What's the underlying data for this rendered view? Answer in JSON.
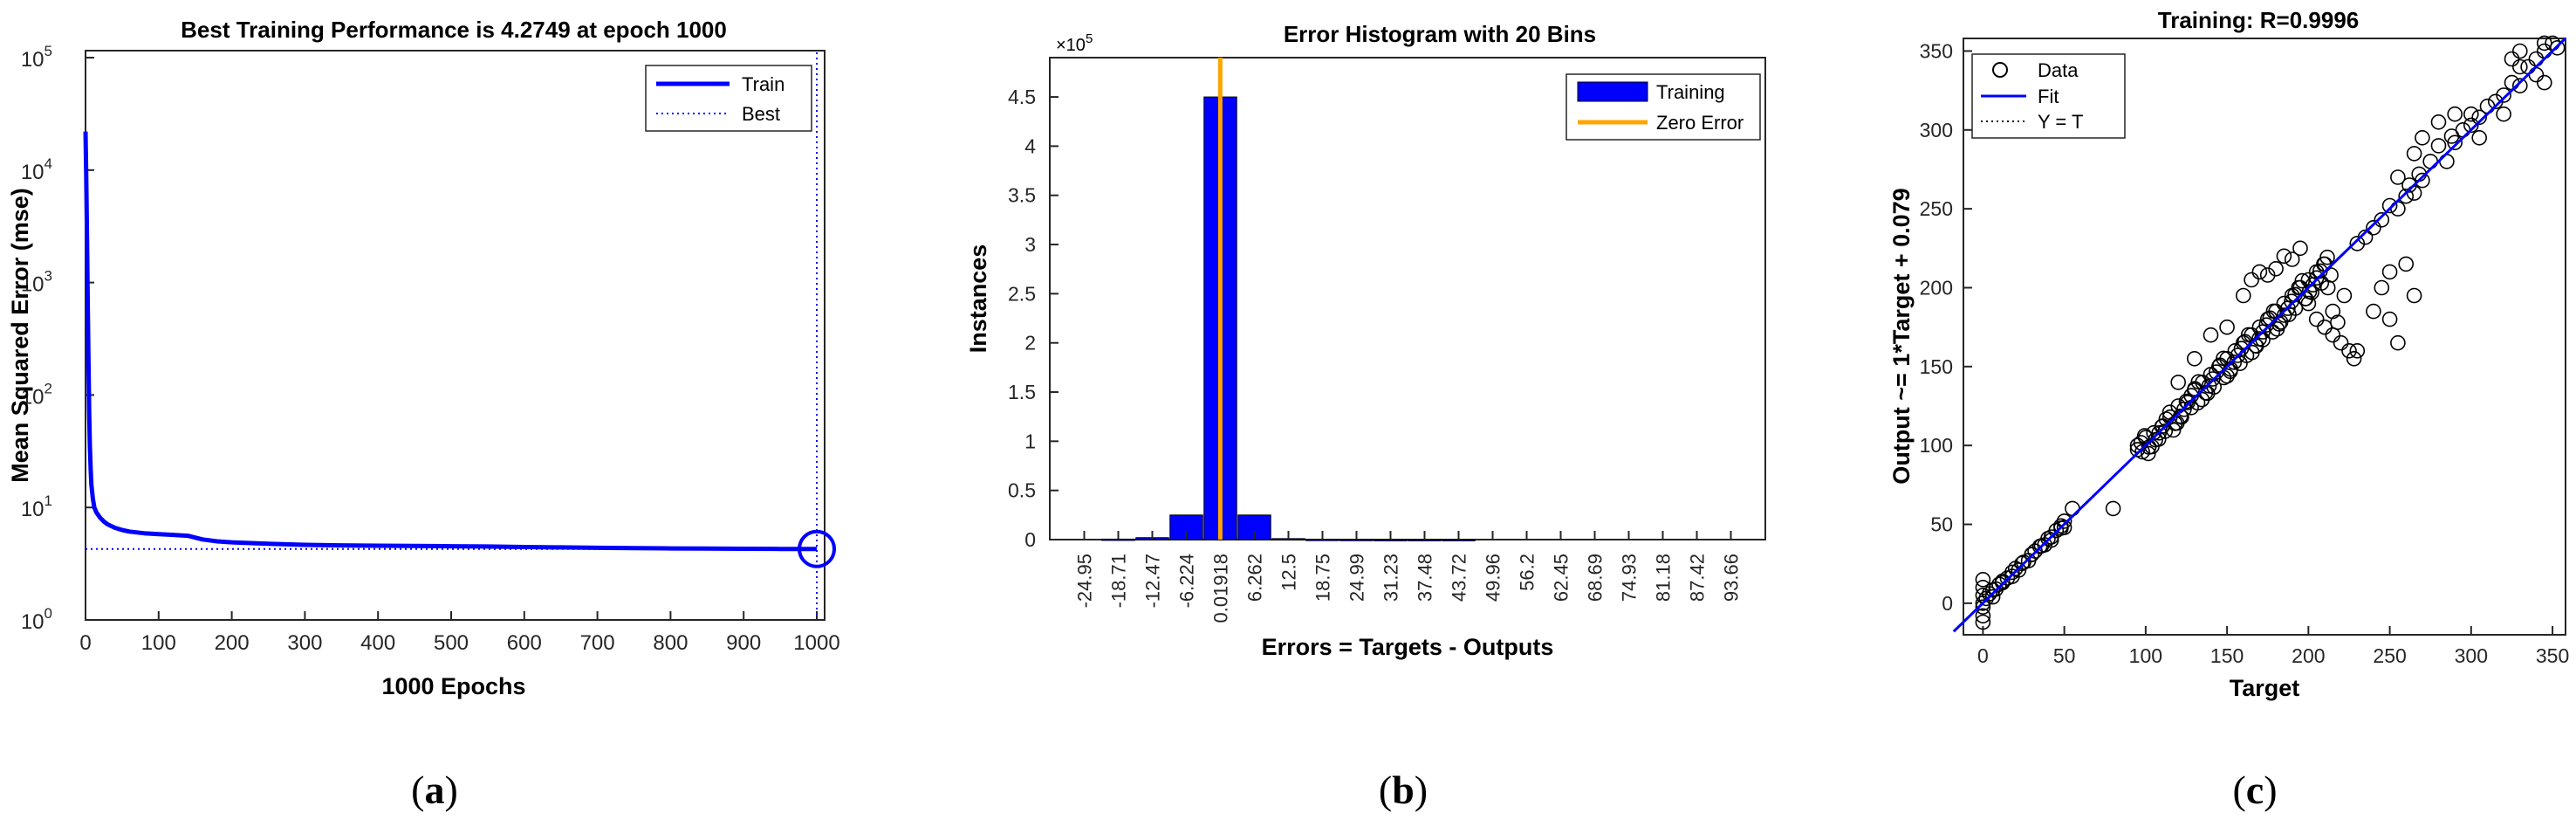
{
  "panels": {
    "a": {
      "label_open": "(",
      "label_letter": "a",
      "label_close": ")"
    },
    "b": {
      "label_open": "(",
      "label_letter": "b",
      "label_close": ")"
    },
    "c": {
      "label_open": "(",
      "label_letter": "c",
      "label_close": ")"
    }
  },
  "chart_data": [
    {
      "type": "line",
      "title": "Best Training Performance is 4.2749 at epoch 1000",
      "xlabel": "1000 Epochs",
      "ylabel": "Mean Squared Error  (mse)",
      "xlim": [
        0,
        1000
      ],
      "ylim": [
        1,
        100000
      ],
      "yscale": "log",
      "xticks": [
        0,
        100,
        200,
        300,
        400,
        500,
        600,
        700,
        800,
        900,
        1000
      ],
      "yticks": [
        {
          "value": 1,
          "base": "10",
          "exp": "0"
        },
        {
          "value": 10,
          "base": "10",
          "exp": "1"
        },
        {
          "value": 100,
          "base": "10",
          "exp": "2"
        },
        {
          "value": 1000,
          "base": "10",
          "exp": "3"
        },
        {
          "value": 10000,
          "base": "10",
          "exp": "4"
        },
        {
          "value": 100000,
          "base": "10",
          "exp": "5"
        }
      ],
      "legend": {
        "position": "top-right",
        "entries": [
          "Train",
          "Best"
        ]
      },
      "grid": false,
      "colors": {
        "train": "#0000ff",
        "best": "#0000ff"
      },
      "series": [
        {
          "name": "Train",
          "x": [
            0,
            1,
            2,
            3,
            4,
            5,
            6,
            7,
            8,
            10,
            12,
            15,
            20,
            25,
            30,
            40,
            50,
            60,
            80,
            100,
            120,
            140,
            150,
            160,
            180,
            200,
            250,
            300,
            350,
            400,
            450,
            500,
            550,
            600,
            650,
            700,
            750,
            800,
            850,
            900,
            950,
            1000
          ],
          "y": [
            22000,
            9000,
            2500,
            700,
            200,
            70,
            35,
            22,
            16,
            12,
            10,
            9,
            8.1,
            7.5,
            7.1,
            6.6,
            6.3,
            6.1,
            5.9,
            5.8,
            5.7,
            5.6,
            5.4,
            5.2,
            5.0,
            4.9,
            4.75,
            4.65,
            4.6,
            4.57,
            4.55,
            4.52,
            4.5,
            4.45,
            4.42,
            4.38,
            4.35,
            4.32,
            4.31,
            4.29,
            4.28,
            4.2749
          ]
        },
        {
          "name": "Best",
          "x": [
            0,
            1000
          ],
          "y": [
            4.2749,
            4.2749
          ],
          "vertical_at_x": 1000
        }
      ],
      "best_marker": {
        "x": 1000,
        "y": 4.2749
      }
    },
    {
      "type": "bar",
      "title": "Error Histogram with 20 Bins",
      "xlabel": "Errors = Targets - Outputs",
      "ylabel": "Instances",
      "y_multiplier": "×10",
      "y_multiplier_exp": "5",
      "ylim": [
        0,
        4.9
      ],
      "yticks": [
        0,
        0.5,
        1,
        1.5,
        2,
        2.5,
        3,
        3.5,
        4,
        4.5
      ],
      "ytick_labels": [
        "0",
        "0.5",
        "1",
        "1.5",
        "2",
        "2.5",
        "3",
        "3.5",
        "4",
        "4.5"
      ],
      "categories": [
        "-24.95",
        "-18.71",
        "-12.47",
        "-6.224",
        "0.01918",
        "6.262",
        "12.5",
        "18.75",
        "24.99",
        "31.23",
        "37.48",
        "43.72",
        "49.96",
        "56.2",
        "62.45",
        "68.69",
        "74.93",
        "81.18",
        "87.42",
        "93.66"
      ],
      "series": [
        {
          "name": "Training",
          "values": [
            0,
            0.005,
            0.02,
            0.25,
            4.5,
            0.25,
            0.01,
            0.003,
            0.002,
            0.001,
            0.001,
            0.001,
            0,
            0,
            0,
            0,
            0,
            0,
            0,
            0
          ]
        }
      ],
      "zero_error_line": {
        "name": "Zero Error",
        "x": 0,
        "ymax": 4.9
      },
      "legend": {
        "position": "top-right",
        "entries": [
          "Training",
          "Zero Error"
        ]
      },
      "colors": {
        "training": "#0000ff",
        "zero_error": "#ffa500"
      },
      "grid": false
    },
    {
      "type": "scatter",
      "title": "Training: R=0.9996",
      "xlabel": "Target",
      "ylabel": "Output ~= 1*Target + 0.079",
      "xlim": [
        -12,
        358
      ],
      "ylim": [
        -20,
        358
      ],
      "xticks": [
        0,
        50,
        100,
        150,
        200,
        250,
        300,
        350
      ],
      "yticks": [
        0,
        50,
        100,
        150,
        200,
        250,
        300,
        350
      ],
      "legend": {
        "position": "top-left",
        "entries": [
          "Data",
          "Fit",
          "Y = T"
        ]
      },
      "fit": {
        "slope": 1,
        "intercept": 0.079
      },
      "colors": {
        "data": "#000000",
        "fit": "#0000ff",
        "identity": "#000000"
      },
      "grid": false,
      "series": [
        {
          "name": "Data",
          "points": [
            [
              0,
              -12
            ],
            [
              0,
              -8
            ],
            [
              0,
              0
            ],
            [
              0,
              5
            ],
            [
              0,
              10
            ],
            [
              0,
              15
            ],
            [
              2,
              3
            ],
            [
              4,
              6
            ],
            [
              6,
              4
            ],
            [
              8,
              9
            ],
            [
              10,
              12
            ],
            [
              12,
              13
            ],
            [
              15,
              16
            ],
            [
              18,
              17
            ],
            [
              20,
              22
            ],
            [
              22,
              21
            ],
            [
              25,
              26
            ],
            [
              28,
              27
            ],
            [
              30,
              31
            ],
            [
              32,
              33
            ],
            [
              35,
              36
            ],
            [
              38,
              37
            ],
            [
              40,
              41
            ],
            [
              42,
              40
            ],
            [
              45,
              46
            ],
            [
              48,
              49
            ],
            [
              50,
              52
            ],
            [
              50,
              48
            ],
            [
              55,
              60
            ],
            [
              80,
              60
            ],
            [
              95,
              100
            ],
            [
              98,
              96
            ],
            [
              100,
              105
            ],
            [
              102,
              99
            ],
            [
              105,
              108
            ],
            [
              108,
              104
            ],
            [
              110,
              112
            ],
            [
              112,
              109
            ],
            [
              115,
              118
            ],
            [
              118,
              114
            ],
            [
              120,
              125
            ],
            [
              122,
              118
            ],
            [
              125,
              128
            ],
            [
              128,
              124
            ],
            [
              130,
              135
            ],
            [
              132,
              127
            ],
            [
              135,
              140
            ],
            [
              138,
              133
            ],
            [
              140,
              145
            ],
            [
              142,
              137
            ],
            [
              145,
              150
            ],
            [
              148,
              143
            ],
            [
              150,
              155
            ],
            [
              152,
              147
            ],
            [
              155,
              160
            ],
            [
              158,
              152
            ],
            [
              160,
              165
            ],
            [
              162,
              157
            ],
            [
              165,
              170
            ],
            [
              168,
              163
            ],
            [
              170,
              175
            ],
            [
              172,
              167
            ],
            [
              175,
              180
            ],
            [
              178,
              172
            ],
            [
              180,
              185
            ],
            [
              182,
              177
            ],
            [
              185,
              190
            ],
            [
              188,
              183
            ],
            [
              190,
              195
            ],
            [
              192,
              187
            ],
            [
              195,
              200
            ],
            [
              198,
              193
            ],
            [
              200,
              205
            ],
            [
              202,
              197
            ],
            [
              205,
              210
            ],
            [
              208,
              203
            ],
            [
              210,
              215
            ],
            [
              165,
              205
            ],
            [
              170,
              210
            ],
            [
              175,
              208
            ],
            [
              180,
              212
            ],
            [
              190,
              218
            ],
            [
              150,
              175
            ],
            [
              140,
              170
            ],
            [
              160,
              195
            ],
            [
              185,
              220
            ],
            [
              195,
              225
            ],
            [
              130,
              155
            ],
            [
              120,
              140
            ],
            [
              200,
              190
            ],
            [
              205,
              180
            ],
            [
              210,
              175
            ],
            [
              215,
              170
            ],
            [
              220,
              165
            ],
            [
              225,
              160
            ],
            [
              228,
              155
            ],
            [
              215,
              185
            ],
            [
              212,
              200
            ],
            [
              222,
              195
            ],
            [
              218,
              178
            ],
            [
              230,
              160
            ],
            [
              240,
              185
            ],
            [
              245,
              200
            ],
            [
              250,
              210
            ],
            [
              230,
              228
            ],
            [
              235,
              232
            ],
            [
              240,
              238
            ],
            [
              245,
              243
            ],
            [
              250,
              252
            ],
            [
              255,
              250
            ],
            [
              260,
              258
            ],
            [
              262,
              265
            ],
            [
              265,
              260
            ],
            [
              270,
              268
            ],
            [
              268,
              272
            ],
            [
              275,
              280
            ],
            [
              250,
              180
            ],
            [
              255,
              165
            ],
            [
              260,
              215
            ],
            [
              265,
              195
            ],
            [
              255,
              270
            ],
            [
              270,
              295
            ],
            [
              265,
              285
            ],
            [
              280,
              290
            ],
            [
              285,
              280
            ],
            [
              290,
              292
            ],
            [
              288,
              296
            ],
            [
              295,
              300
            ],
            [
              300,
              303
            ],
            [
              305,
              308
            ],
            [
              310,
              315
            ],
            [
              315,
              318
            ],
            [
              320,
              322
            ],
            [
              325,
              330
            ],
            [
              330,
              328
            ],
            [
              335,
              340
            ],
            [
              340,
              345
            ],
            [
              345,
              350
            ],
            [
              350,
              355
            ],
            [
              353,
              352
            ],
            [
              340,
              335
            ],
            [
              320,
              310
            ],
            [
              330,
              340
            ],
            [
              300,
              310
            ],
            [
              305,
              295
            ],
            [
              280,
              305
            ],
            [
              290,
              310
            ],
            [
              325,
              345
            ],
            [
              345,
              355
            ],
            [
              330,
              350
            ],
            [
              345,
              330
            ]
          ]
        },
        {
          "name": "Fit"
        },
        {
          "name": "Y = T"
        }
      ]
    }
  ]
}
